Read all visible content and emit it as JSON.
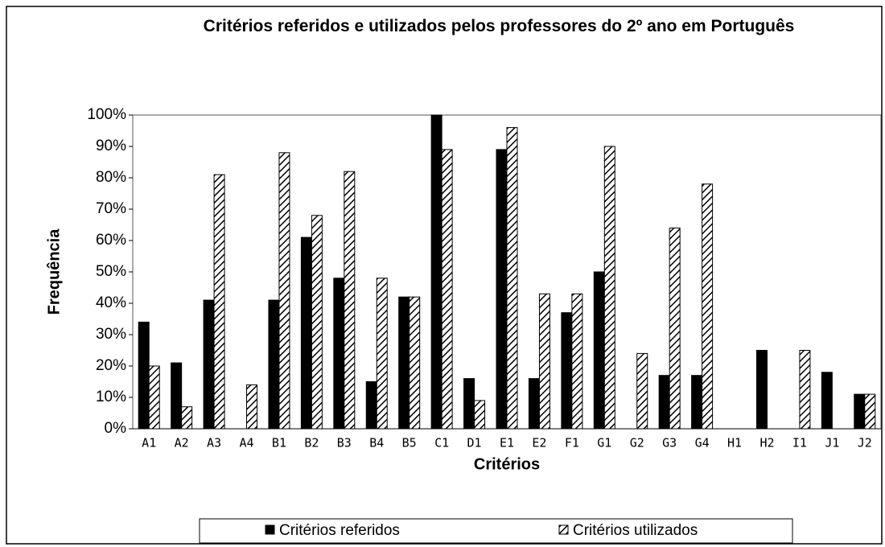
{
  "chart_data": {
    "type": "bar",
    "title": "Critérios referidos e utilizados pelos professores do 2º ano em Português",
    "x_label": "Critérios",
    "y_label": "Frequência",
    "categories": [
      "A1",
      "A2",
      "A3",
      "A4",
      "B1",
      "B2",
      "B3",
      "B4",
      "B5",
      "C1",
      "D1",
      "E1",
      "E2",
      "F1",
      "G1",
      "G2",
      "G3",
      "G4",
      "H1",
      "H2",
      "I1",
      "J1",
      "J2"
    ],
    "series": [
      {
        "name": "Critérios referidos",
        "color": "#000000",
        "hatch": false,
        "values": [
          34,
          21,
          41,
          0,
          41,
          61,
          48,
          15,
          42,
          100,
          16,
          89,
          16,
          37,
          50,
          0,
          17,
          17,
          0,
          25,
          0,
          18,
          11
        ]
      },
      {
        "name": "Critérios utilizados",
        "color": "#000000",
        "hatch": true,
        "values": [
          20,
          7,
          81,
          14,
          88,
          68,
          82,
          48,
          42,
          89,
          9,
          96,
          43,
          43,
          90,
          24,
          64,
          78,
          0,
          0,
          25,
          0,
          11
        ]
      }
    ],
    "ylim": [
      0,
      100
    ],
    "yticks": [
      {
        "value": 0,
        "label": "0%"
      },
      {
        "value": 10,
        "label": "10%"
      },
      {
        "value": 20,
        "label": "20%"
      },
      {
        "value": 30,
        "label": "30%"
      },
      {
        "value": 40,
        "label": "40%"
      },
      {
        "value": 50,
        "label": "50%"
      },
      {
        "value": 60,
        "label": "60%"
      },
      {
        "value": 70,
        "label": "70%"
      },
      {
        "value": 80,
        "label": "80%"
      },
      {
        "value": 90,
        "label": "90%"
      },
      {
        "value": 100,
        "label": "100%"
      }
    ],
    "grid": false,
    "legend": "bottom"
  }
}
